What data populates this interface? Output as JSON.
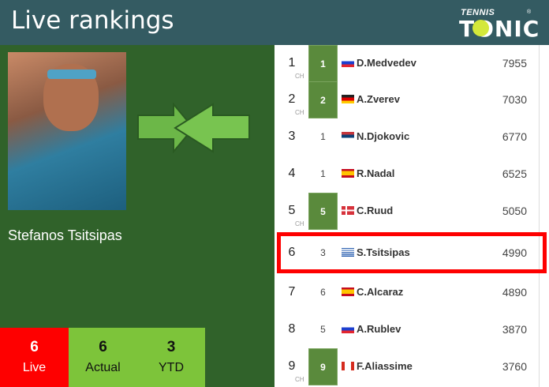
{
  "header": {
    "title": "Live rankings",
    "logo_top": "TENNIS",
    "logo_bottom": "TONIC"
  },
  "player": {
    "name": "Stefanos Tsitsipas"
  },
  "stats": [
    {
      "value": "6",
      "label": "Live"
    },
    {
      "value": "6",
      "label": "Actual"
    },
    {
      "value": "3",
      "label": "YTD"
    }
  ],
  "colors": {
    "header": "#345b62",
    "panel": "#30622a",
    "live": "#fe0000",
    "stat": "#7dc43a",
    "prev_box": "#5a8a3c",
    "highlight": "#fe0000"
  },
  "rankings": [
    {
      "rank": "1",
      "ch": "CH",
      "prev": "1",
      "prev_highlight": true,
      "flag": "russia",
      "name": "D.Medvedev",
      "points": "7955"
    },
    {
      "rank": "2",
      "ch": "CH",
      "prev": "2",
      "prev_highlight": true,
      "flag": "germany",
      "name": "A.Zverev",
      "points": "7030"
    },
    {
      "rank": "3",
      "ch": "",
      "prev": "1",
      "prev_highlight": false,
      "flag": "serbia",
      "name": "N.Djokovic",
      "points": "6770"
    },
    {
      "rank": "4",
      "ch": "",
      "prev": "1",
      "prev_highlight": false,
      "flag": "spain",
      "name": "R.Nadal",
      "points": "6525"
    },
    {
      "rank": "5",
      "ch": "CH",
      "prev": "5",
      "prev_highlight": true,
      "flag": "norway",
      "name": "C.Ruud",
      "points": "5050"
    },
    {
      "rank": "6",
      "ch": "",
      "prev": "3",
      "prev_highlight": false,
      "flag": "greece",
      "name": "S.Tsitsipas",
      "points": "4990",
      "selected": true
    },
    {
      "rank": "7",
      "ch": "",
      "prev": "6",
      "prev_highlight": false,
      "flag": "spain",
      "name": "C.Alcaraz",
      "points": "4890"
    },
    {
      "rank": "8",
      "ch": "",
      "prev": "5",
      "prev_highlight": false,
      "flag": "russia",
      "name": "A.Rublev",
      "points": "3870"
    },
    {
      "rank": "9",
      "ch": "CH",
      "prev": "9",
      "prev_highlight": true,
      "flag": "canada",
      "name": "F.Aliassime",
      "points": "3760"
    }
  ]
}
